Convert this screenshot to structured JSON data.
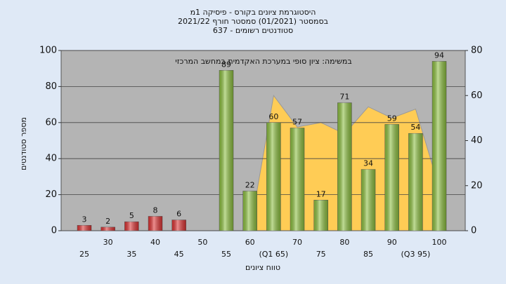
{
  "chart_data": {
    "type": "bar",
    "title_lines": [
      "היסטוגרמת ציונים בקורס - פיסיקה 1מ",
      "בסמסטר  (01/2021)  סמסטר חורף 2021/22",
      "סטודנטים רשומים - 637"
    ],
    "annotation": "במשימה: ציון סופי במערכת האקדמית במחשב המרכזי",
    "xlabel": "טווח ציונים",
    "ylabel": "מספר סטודנטים",
    "categories": [
      "25",
      "30",
      "35",
      "40",
      "45",
      "50",
      "55",
      "60",
      "(Q1 65)",
      "70",
      "75",
      "80",
      "85",
      "90",
      "(Q3 95)",
      "100"
    ],
    "series": [
      {
        "values": [
          3,
          2,
          5,
          8,
          6,
          null,
          89,
          22,
          60,
          57,
          17,
          71,
          34,
          59,
          54,
          94
        ],
        "colors": [
          "#dd3333",
          "#dd3333",
          "#dd3333",
          "#dd3333",
          "#dd3333",
          "#dd3333",
          "#8cbf3f",
          "#8cbf3f",
          "#8cbf3f",
          "#8cbf3f",
          "#8cbf3f",
          "#8cbf3f",
          "#8cbf3f",
          "#8cbf3f",
          "#8cbf3f",
          "#8cbf3f"
        ]
      },
      {
        "type": "area",
        "axis": "y2",
        "color": "#ffcc55",
        "values": [
          null,
          null,
          null,
          null,
          null,
          null,
          null,
          0,
          60,
          46,
          48,
          43,
          55,
          50,
          54,
          19
        ]
      }
    ],
    "ylim": [
      0,
      100
    ],
    "yticks": [
      0,
      20,
      40,
      60,
      80,
      100
    ],
    "y2lim": [
      0,
      80
    ],
    "y2ticks": [
      0,
      20,
      40,
      60,
      80
    ],
    "grid": true
  }
}
